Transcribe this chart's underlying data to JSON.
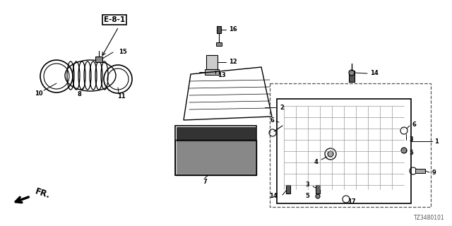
{
  "bg_color": "#ffffff",
  "diagram_code": "TZ3480101",
  "ref_label": "E-8-1",
  "fr_label": "FR.",
  "lc": "#000000",
  "tc": "#000000",
  "sf": 6.0
}
